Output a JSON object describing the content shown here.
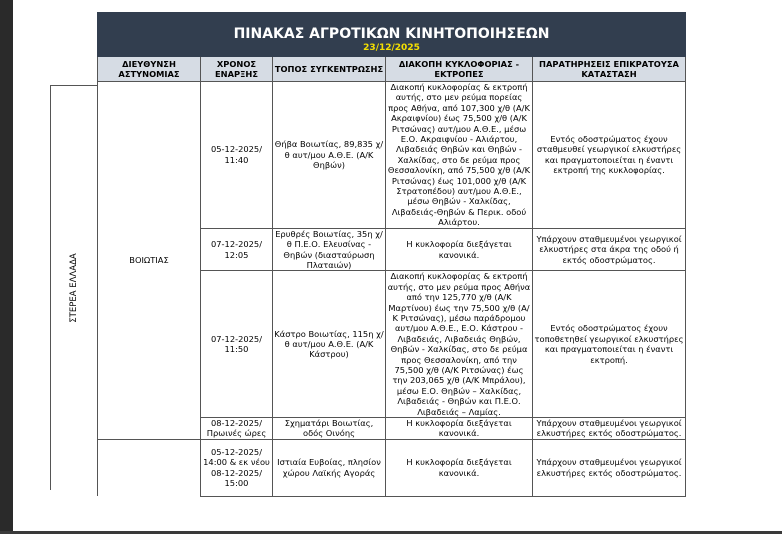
{
  "title": "ΠΙΝΑΚΑΣ ΑΓΡΟΤΙΚΩΝ ΚΙΝΗΤΟΠΟΙΗΣΕΩΝ",
  "date": "23/12/2025",
  "colors": {
    "title_bg": "#323e4f",
    "date": "#f5e000",
    "header_bg": "#d6dce4"
  },
  "headers": [
    "ΔΙΕΥΘΥΝΣΗ ΑΣΤΥΝΟΜΙΑΣ",
    "ΧΡΟΝΟΣ ΕΝΑΡΞΗΣ",
    "ΤΟΠΟΣ ΣΥΓΚΕΝΤΡΩΣΗΣ",
    "ΔΙΑΚΟΠΗ ΚΥΚΛΟΦΟΡΙΑΣ - ΕΚΤΡΟΠΕΣ",
    "ΠΑΡΑΤΗΡΗΣΕΙΣ ΕΠΙΚΡΑΤΟΥΣΑ ΚΑΤΑΣΤΑΣΗ"
  ],
  "region": "ΣΤΕΡΕΑ ΕΛΛΑΔΑ",
  "directorate": "ΒΟΙΩΤΙΑΣ",
  "rows": [
    {
      "time": "05-12-2025/ 11:40",
      "place": "Θήβα Βοιωτίας, 89,835 χ/θ αυτ/μου Α.Θ.Ε. (Α/Κ Θηβών)",
      "traffic": "Διακοπή κυκλοφορίας & εκτροπή αυτής, στο μεν ρεύμα πορείας προς Αθήνα, από 107,300 χ/θ (Α/Κ Ακραιφνίου) έως 75,500 χ/θ (Α/Κ Ριτσώνας) αυτ/μου Α.Θ.Ε., μέσω Ε.Ο. Ακραιφνίου - Αλιάρτου, Λιβαδειάς Θηβών και Θηβών - Χαλκίδας, στο δε ρεύμα προς Θεσσαλονίκη, από 75,500 χ/θ (Α/Κ Ριτσώνας) έως 101,000 χ/θ (Α/Κ Στρατοπέδου) αυτ/μου Α.Θ.Ε., μέσω Θηβών - Χαλκίδας, Λιβαδειάς-Θηβών & Περικ. οδού Αλιάρτου.",
      "notes": "Εντός οδοστρώματος έχουν σταθμευθεί γεωργικοί ελκυστήρες και πραγματοποιείται η έναντι εκτροπή της κυκλοφορίας."
    },
    {
      "time": "07-12-2025/ 12:05",
      "place": "Ερυθρές Βοιωτίας, 35η χ/θ Π.Ε.Ο. Ελευσίνας - Θηβών (διασταύρωση Πλαταιών)",
      "traffic": "Η κυκλοφορία διεξάγεται κανονικά.",
      "notes": "Υπάρχουν σταθμευμένοι γεωργικοί ελκυστήρες στα άκρα της οδού ή εκτός οδοστρώματος."
    },
    {
      "time": "07-12-2025/ 11:50",
      "place": "Κάστρο Βοιωτίας, 115η χ/θ αυτ/μου Α.Θ.Ε. (Α/Κ Κάστρου)",
      "traffic": "Διακοπή κυκλοφορίας & εκτροπή αυτής, στο μεν ρεύμα προς Αθήνα από την 125,770 χ/θ (Α/Κ Μαρτίνου) έως την 75,500 χ/θ (Α/Κ Ριτσώνας), μέσω παράδρομου αυτ/μου Α.Θ.Ε., Ε.Ο. Κάστρου - Λιβαδειάς, Λιβαδειάς Θηβών, Θηβών - Χαλκίδας, στο δε ρεύμα προς Θεσσαλονίκη, από την 75,500 χ/θ (Α/Κ Ριτσώνας) έως την 203,065 χ/θ (Α/Κ Μπράλου), μέσω Ε.Ο. Θηβών – Χαλκίδας, Λιβαδειάς - Θηβών και Π.Ε.Ο. Λιβαδειάς – Λαμίας.",
      "notes": "Εντός οδοστρώματος έχουν τοποθετηθεί γεωργικοί ελκυστήρες και πραγματοποιείται η έναντι εκτροπή."
    },
    {
      "time": "08-12-2025/ Πρωινές ώρες",
      "place": "Σχηματάρι Βοιωτίας, οδός Οινόης",
      "traffic": "Η κυκλοφορία διεξάγεται κανονικά.",
      "notes": "Υπάρχουν σταθμευμένοι γεωργικοί ελκυστήρες εκτός οδοστρώματος."
    },
    {
      "time": "05-12-2025/ 14:00 & εκ νέου 08-12-2025/ 15:00",
      "place": "Ιστιαία Ευβοίας, πλησίον χώρου Λαϊκής Αγοράς",
      "traffic": "Η κυκλοφορία διεξάγεται κανονικά.",
      "notes": "Υπάρχουν σταθμευμένοι γεωργικοί ελκυστήρες εκτός οδοστρώματος."
    }
  ]
}
